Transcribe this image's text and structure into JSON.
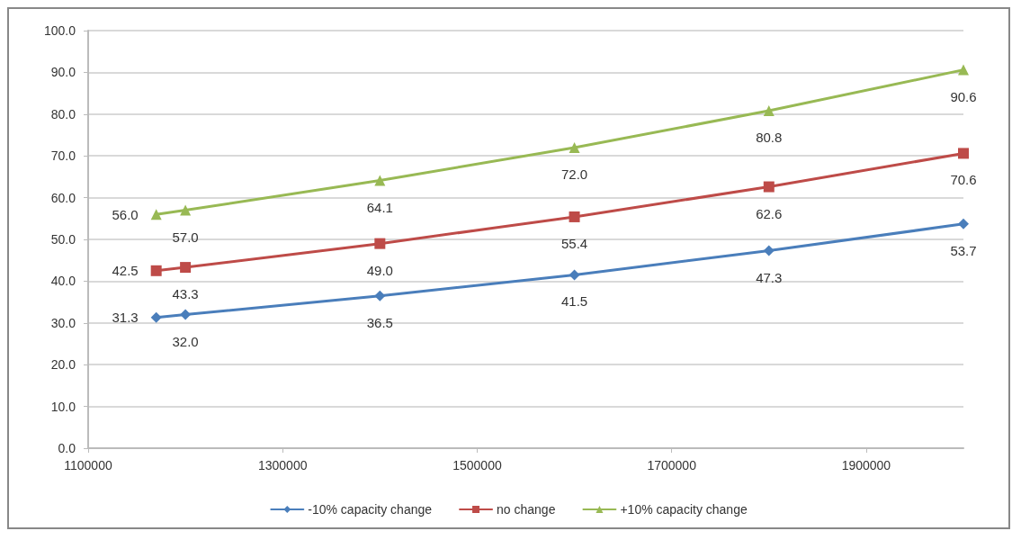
{
  "chart_data": {
    "type": "line",
    "x": [
      1170000,
      1200000,
      1400000,
      1600000,
      1800000,
      2000000
    ],
    "xlim": [
      1100000,
      2000000
    ],
    "xticks": [
      1100000,
      1300000,
      1500000,
      1700000,
      1900000
    ],
    "ylim": [
      0,
      100
    ],
    "yticks": [
      {
        "value": 0,
        "label": "0.0"
      },
      {
        "value": 10,
        "label": "10.0"
      },
      {
        "value": 20,
        "label": "20.0"
      },
      {
        "value": 30,
        "label": "30.0"
      },
      {
        "value": 40,
        "label": "40.0"
      },
      {
        "value": 50,
        "label": "50.0"
      },
      {
        "value": 60,
        "label": "60.0"
      },
      {
        "value": 70,
        "label": "70.0"
      },
      {
        "value": 80,
        "label": "80.0"
      },
      {
        "value": 90,
        "label": "90.0"
      },
      {
        "value": 100,
        "label": "100.0"
      }
    ],
    "grid": "y",
    "legend": "bottom",
    "line_style": "solid",
    "series": [
      {
        "name": "-10% capacity change",
        "color": "#4a7ebb",
        "marker": "diamond",
        "values": [
          31.3,
          32.0,
          36.5,
          41.5,
          47.3,
          53.7
        ],
        "value_labels": [
          "31.3",
          "32.0",
          "36.5",
          "41.5",
          "47.3",
          "53.7"
        ]
      },
      {
        "name": "no change",
        "color": "#be4b48",
        "marker": "square",
        "values": [
          42.5,
          43.3,
          49.0,
          55.4,
          62.6,
          70.6
        ],
        "value_labels": [
          "42.5",
          "43.3",
          "49.0",
          "55.4",
          "62.6",
          "70.6"
        ]
      },
      {
        "name": "+10% capacity change",
        "color": "#98b954",
        "marker": "triangle",
        "values": [
          56.0,
          57.0,
          64.1,
          72.0,
          80.8,
          90.6
        ],
        "value_labels": [
          "56.0",
          "57.0",
          "64.1",
          "72.0",
          "80.8",
          "90.6"
        ]
      }
    ]
  }
}
